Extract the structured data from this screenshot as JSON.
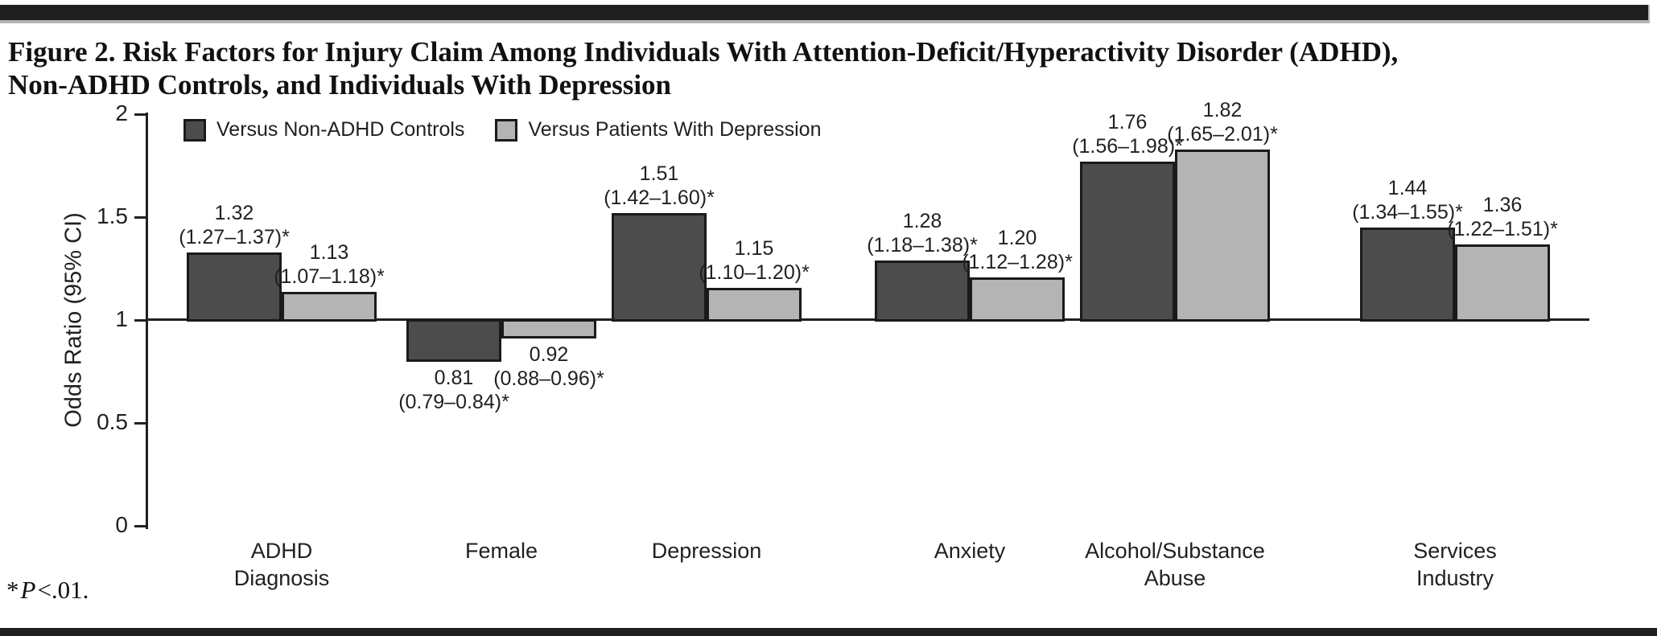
{
  "figure": {
    "title_line1": "Figure 2. Risk Factors for Injury Claim Among Individuals With Attention-Deficit/Hyperactivity Disorder (ADHD),",
    "title_line2": "Non-ADHD Controls, and Individuals With Depression",
    "footnote": {
      "star": "*",
      "p_symbol": "P",
      "rest": "<.01."
    }
  },
  "chart_data": {
    "type": "bar",
    "title": "Figure 2. Risk Factors for Injury Claim Among Individuals With Attention-Deficit/Hyperactivity Disorder (ADHD), Non-ADHD Controls, and Individuals With Depression",
    "xlabel": "",
    "ylabel": "Odds Ratio (95% CI)",
    "ylim": [
      0,
      2
    ],
    "yticks": [
      {
        "v": 0,
        "label": "0"
      },
      {
        "v": 0.5,
        "label": "0.5"
      },
      {
        "v": 1,
        "label": "1"
      },
      {
        "v": 1.5,
        "label": "1.5"
      },
      {
        "v": 2,
        "label": "2"
      }
    ],
    "baseline": 1,
    "grid": false,
    "legend_position": "top-left",
    "categories": [
      "ADHD\nDiagnosis",
      "Female",
      "Depression",
      "Anxiety",
      "Alcohol/Substance\nAbuse",
      "Services\nIndustry"
    ],
    "series": [
      {
        "name": "Versus Non-ADHD Controls",
        "color": "#4c4c4c",
        "values": [
          1.32,
          0.81,
          1.51,
          1.28,
          1.76,
          1.44
        ],
        "value_labels": [
          "1.32",
          "0.81",
          "1.51",
          "1.28",
          "1.76",
          "1.44"
        ],
        "ci_labels": [
          "(1.27–1.37)*",
          "(0.79–0.84)*",
          "(1.42–1.60)*",
          "(1.18–1.38)*",
          "(1.56–1.98)*",
          "(1.34–1.55)*"
        ]
      },
      {
        "name": "Versus Patients With Depression",
        "color": "#b4b4b4",
        "values": [
          1.13,
          0.92,
          1.15,
          1.2,
          1.82,
          1.36
        ],
        "value_labels": [
          "1.13",
          "0.92",
          "1.15",
          "1.20",
          "1.82",
          "1.36"
        ],
        "ci_labels": [
          "(1.07–1.18)*",
          "(0.88–0.96)*",
          "(1.10–1.20)*",
          "(1.12–1.28)*",
          "(1.65–2.01)*",
          "(1.22–1.51)*"
        ]
      }
    ],
    "footnote": "*P<.01."
  }
}
